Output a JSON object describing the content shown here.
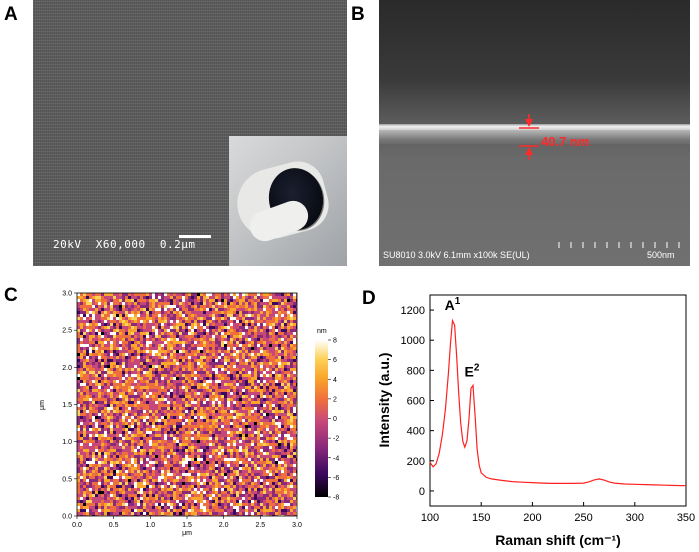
{
  "panels": {
    "a": {
      "letter": "A",
      "scale_text": "20kV  X60,000  0.2μm"
    },
    "b": {
      "letter": "B",
      "measurement": "40.7 nm",
      "info_text": "SU8010 3.0kV 6.1mm x100k SE(UL)",
      "scale_text": "500nm"
    },
    "c": {
      "letter": "C",
      "colorbar_unit": "nm",
      "colorbar_ticks": [
        "8",
        "6",
        "4",
        "2",
        "0",
        "-2",
        "-4",
        "-6",
        "-8"
      ],
      "x_ticks": [
        "0.0",
        "0.5",
        "1.0",
        "1.5",
        "2.0",
        "2.5",
        "3.0"
      ],
      "y_ticks": [
        "0.0",
        "0.5",
        "1.0",
        "1.5",
        "2.0",
        "2.5",
        "3.0"
      ],
      "xlabel": "μm",
      "ylabel": "μm",
      "colorscale": [
        "#000000",
        "#3b0a5e",
        "#8a2a7a",
        "#c6487a",
        "#ef6e3e",
        "#f9a62a",
        "#fcd25a",
        "#ffffff"
      ]
    },
    "d": {
      "letter": "D"
    }
  },
  "chart_data": {
    "type": "line",
    "xlabel": "Raman shift (cm⁻¹)",
    "ylabel": "Intensity (a.u.)",
    "xlim": [
      100,
      350
    ],
    "ylim": [
      -100,
      1300
    ],
    "x_ticks": [
      100,
      150,
      200,
      250,
      300,
      350
    ],
    "y_ticks": [
      0,
      200,
      400,
      600,
      800,
      1000,
      1200
    ],
    "color": "#ff2020",
    "annotations": [
      {
        "base": "A",
        "sup": "1",
        "x": 122,
        "y": 1200
      },
      {
        "base": "E",
        "sup": "2",
        "x": 141,
        "y": 760
      }
    ],
    "x": [
      100,
      103,
      106,
      109,
      112,
      115,
      118,
      120,
      122,
      124,
      126,
      128,
      130,
      132,
      134,
      136,
      138,
      140,
      142,
      144,
      146,
      148,
      150,
      155,
      160,
      170,
      180,
      190,
      200,
      210,
      220,
      230,
      240,
      250,
      255,
      260,
      265,
      270,
      275,
      280,
      290,
      300,
      310,
      320,
      330,
      340,
      350
    ],
    "y": [
      190,
      160,
      180,
      250,
      370,
      540,
      780,
      980,
      1130,
      1100,
      900,
      650,
      450,
      330,
      290,
      330,
      470,
      680,
      700,
      500,
      280,
      170,
      120,
      90,
      80,
      70,
      62,
      58,
      55,
      52,
      50,
      50,
      50,
      52,
      60,
      72,
      80,
      72,
      60,
      52,
      46,
      44,
      42,
      40,
      38,
      36,
      35
    ]
  }
}
